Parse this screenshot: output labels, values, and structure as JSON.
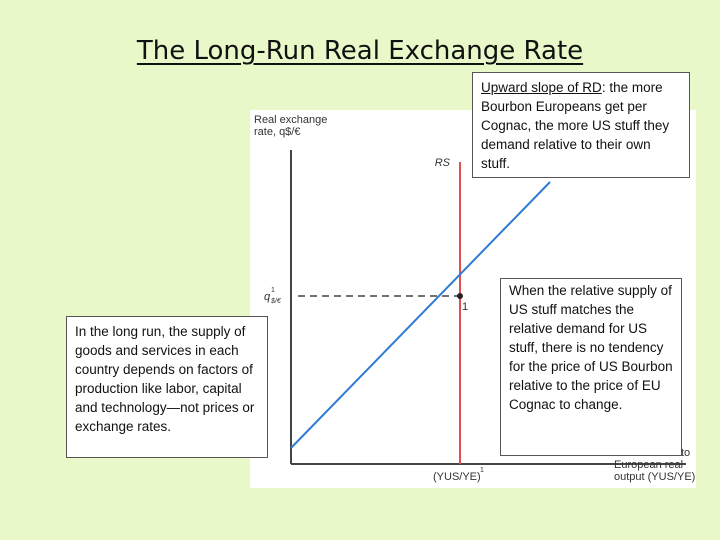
{
  "slide": {
    "title": "The Long-Run Real Exchange Rate"
  },
  "figure": {
    "y_axis_label_line1": "Real exchange",
    "y_axis_label_line2": "rate, q$/€",
    "rs_label": "RS",
    "q_label": "q",
    "q_superscript": "1",
    "q_subscript": "$/€",
    "point_label": "1",
    "x_tick_label": "(YUS/YE)",
    "x_tick_superscript": "1",
    "x_axis_label_line1": "European real",
    "x_axis_label_line2": "output (YUS/YE)",
    "x_axis_label_fragment": "to",
    "colors": {
      "rs_line": "#e05050",
      "rd_line": "#2f7bd4",
      "axis": "#444444"
    }
  },
  "callouts": {
    "top": {
      "underlined": "Upward slope of RD",
      "rest": ": the more Bourbon Europeans get per Cognac, the  more US stuff they demand relative to their own stuff."
    },
    "left": "In the long run, the supply of goods and services in each country depends on factors of production like labor, capital and technology—not prices or exchange rates.",
    "right": "When the relative supply of US stuff matches the relative demand for US stuff, there is no tendency for the price of US Bourbon relative to the price of EU Cognac to change."
  }
}
